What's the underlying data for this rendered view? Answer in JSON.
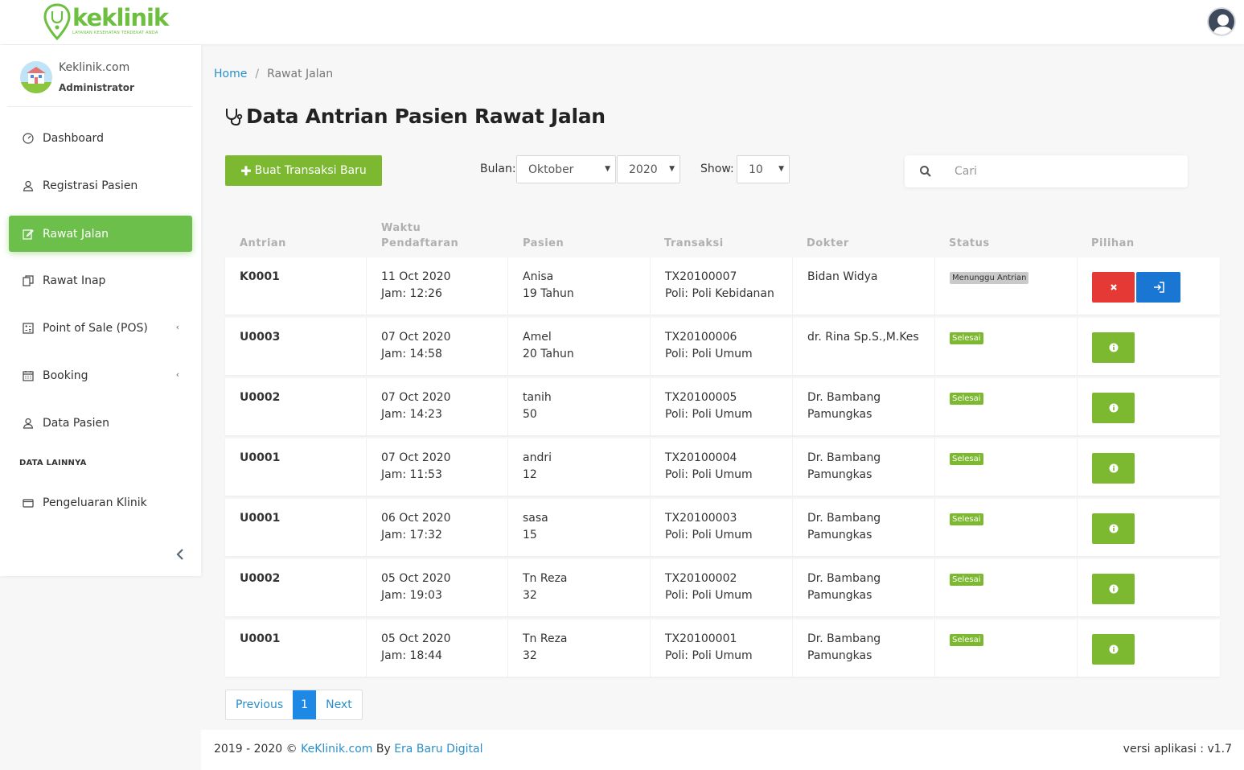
{
  "brand": {
    "name": "keklinik",
    "tagline": "LAYANAN KESEHATAN TERDEKAT ANDA",
    "color": "#6cbf3f"
  },
  "profile": {
    "name": "Keklinik.com",
    "role": "Administrator"
  },
  "sidebar": {
    "items": [
      {
        "label": "Dashboard",
        "icon": "dashboard-icon"
      },
      {
        "label": "Registrasi Pasien",
        "icon": "user-icon"
      },
      {
        "label": "Rawat Jalan",
        "icon": "edit-icon",
        "active": true
      },
      {
        "label": "Rawat Inap",
        "icon": "copy-icon"
      },
      {
        "label": "Point of Sale (POS)",
        "icon": "calculator-icon"
      },
      {
        "label": "Booking",
        "icon": "calendar-icon"
      },
      {
        "label": "Data Pasien",
        "icon": "user-icon"
      }
    ],
    "section_label": "DATA LAINNYA",
    "extra_items": [
      {
        "label": "Pengeluaran Klinik",
        "icon": "wallet-icon"
      }
    ]
  },
  "breadcrumb": {
    "home": "Home",
    "separator": "/",
    "current": "Rawat Jalan"
  },
  "page": {
    "title": "Data Antrian Pasien Rawat Jalan"
  },
  "toolbar": {
    "new_button": "Buat Transaksi Baru",
    "month_label": "Bulan:",
    "month_value": "Oktober",
    "year_value": "2020",
    "show_label": "Show:",
    "show_value": "10",
    "search_placeholder": "Cari"
  },
  "table": {
    "headers": {
      "antrian": "Antrian",
      "waktu_1": "Waktu",
      "waktu_2": "Pendaftaran",
      "pasien": "Pasien",
      "transaksi": "Transaksi",
      "dokter": "Dokter",
      "status": "Status",
      "pilihan": "Pilihan"
    },
    "rows": [
      {
        "antrian": "K0001",
        "tanggal": "11 Oct 2020",
        "jam": "Jam:  12:26",
        "pasien": "Anisa",
        "umur": "19 Tahun",
        "trx": "TX20100007",
        "poli": "Poli: Poli Kebidanan",
        "dokter1": "Bidan Widya",
        "dokter2": "",
        "status": "Menunggu Antrian",
        "status_type": "wait"
      },
      {
        "antrian": "U0003",
        "tanggal": "07 Oct 2020",
        "jam": "Jam:  14:58",
        "pasien": "Amel",
        "umur": "20 Tahun",
        "trx": "TX20100006",
        "poli": "Poli: Poli Umum",
        "dokter1": "dr. Rina Sp.S.,M.Kes",
        "dokter2": "",
        "status": "Selesai",
        "status_type": "done"
      },
      {
        "antrian": "U0002",
        "tanggal": "07 Oct 2020",
        "jam": "Jam:  14:23",
        "pasien": "tanih",
        "umur": "50",
        "trx": "TX20100005",
        "poli": "Poli: Poli Umum",
        "dokter1": "Dr. Bambang",
        "dokter2": "Pamungkas",
        "status": "Selesai",
        "status_type": "done"
      },
      {
        "antrian": "U0001",
        "tanggal": "07 Oct 2020",
        "jam": "Jam:  11:53",
        "pasien": "andri",
        "umur": "12",
        "trx": "TX20100004",
        "poli": "Poli: Poli Umum",
        "dokter1": "Dr. Bambang",
        "dokter2": "Pamungkas",
        "status": "Selesai",
        "status_type": "done"
      },
      {
        "antrian": "U0001",
        "tanggal": "06 Oct 2020",
        "jam": "Jam:  17:32",
        "pasien": "sasa",
        "umur": "15",
        "trx": "TX20100003",
        "poli": "Poli: Poli Umum",
        "dokter1": "Dr. Bambang",
        "dokter2": "Pamungkas",
        "status": "Selesai",
        "status_type": "done"
      },
      {
        "antrian": "U0002",
        "tanggal": "05 Oct 2020",
        "jam": "Jam:  19:03",
        "pasien": "Tn Reza",
        "umur": "32",
        "trx": "TX20100002",
        "poli": "Poli: Poli Umum",
        "dokter1": "Dr. Bambang",
        "dokter2": "Pamungkas",
        "status": "Selesai",
        "status_type": "done"
      },
      {
        "antrian": "U0001",
        "tanggal": "05 Oct 2020",
        "jam": "Jam:  18:44",
        "pasien": "Tn Reza",
        "umur": "32",
        "trx": "TX20100001",
        "poli": "Poli: Poli Umum",
        "dokter1": "Dr. Bambang",
        "dokter2": "Pamungkas",
        "status": "Selesai",
        "status_type": "done"
      }
    ]
  },
  "pagination": {
    "previous": "Previous",
    "page": "1",
    "next": "Next"
  },
  "footer": {
    "years": "2019 - 2020 ©",
    "site_link": "KeKlinik.com",
    "by": "By",
    "company_link": "Era Baru Digital",
    "version": "versi aplikasi : v1.7"
  },
  "colors": {
    "accent_green": "#7cb830",
    "link_blue": "#2a8fc8",
    "danger": "#e53935",
    "primary": "#1976d2"
  }
}
